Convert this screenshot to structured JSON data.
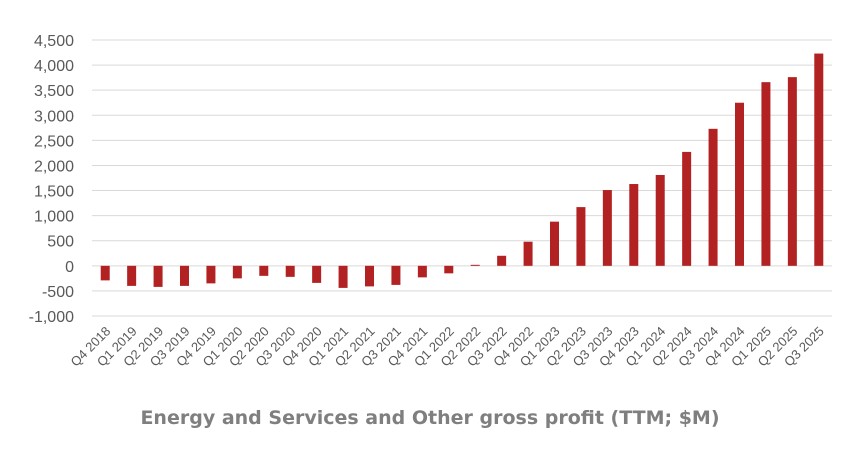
{
  "chart_data": {
    "type": "bar",
    "title": "",
    "caption": "Energy and Services and Other gross profit (TTM; $M)",
    "xlabel": "",
    "ylabel": "",
    "ylim": [
      -1000,
      4500
    ],
    "yticks": [
      -1000,
      -500,
      0,
      500,
      1000,
      1500,
      2000,
      2500,
      3000,
      3500,
      4000,
      4500
    ],
    "ytick_labels": [
      "-1,000",
      "-500",
      "0",
      "500",
      "1,000",
      "1,500",
      "2,000",
      "2,500",
      "3,000",
      "3,500",
      "4,000",
      "4,500"
    ],
    "grid": true,
    "legend": "none",
    "bar_color": "#B22222",
    "categories": [
      "Q4 2018",
      "Q1 2019",
      "Q2 2019",
      "Q3 2019",
      "Q4 2019",
      "Q1 2020",
      "Q2 2020",
      "Q3 2020",
      "Q4 2020",
      "Q1 2021",
      "Q2 2021",
      "Q3 2021",
      "Q4 2021",
      "Q1 2022",
      "Q2 2022",
      "Q3 2022",
      "Q4 2022",
      "Q1 2023",
      "Q2 2023",
      "Q3 2023",
      "Q4 2023",
      "Q1 2024",
      "Q2 2024",
      "Q3 2024",
      "Q4 2024",
      "Q1 2025",
      "Q2 2025",
      "Q3 2025"
    ],
    "values": [
      -290,
      -400,
      -420,
      -400,
      -350,
      -250,
      -200,
      -220,
      -340,
      -440,
      -410,
      -380,
      -230,
      -150,
      20,
      200,
      480,
      880,
      1170,
      1510,
      1630,
      1810,
      2270,
      2730,
      3250,
      3660,
      3760,
      4230
    ]
  }
}
